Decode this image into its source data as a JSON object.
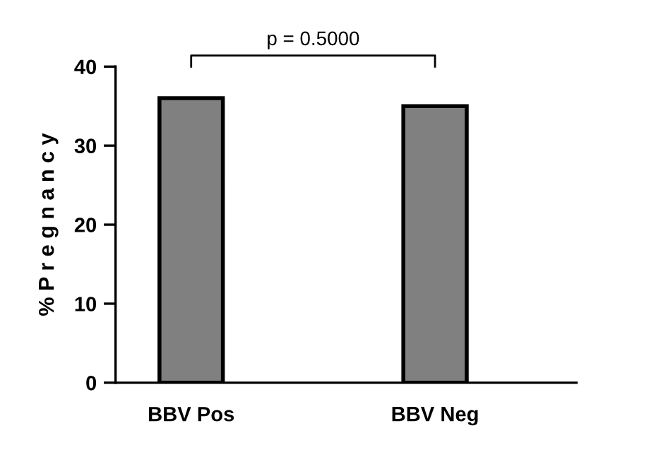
{
  "chart_data": {
    "type": "bar",
    "ylabel": "% P r e g n a n c y",
    "categories": [
      "BBV Pos",
      "BBV Neg"
    ],
    "values": [
      36,
      35
    ],
    "color": "#808080",
    "ylim": [
      0,
      40
    ],
    "yticks": [
      0,
      10,
      20,
      30,
      40
    ],
    "grid": false,
    "legend": false,
    "annotations": [
      "p = 0.5000"
    ]
  }
}
